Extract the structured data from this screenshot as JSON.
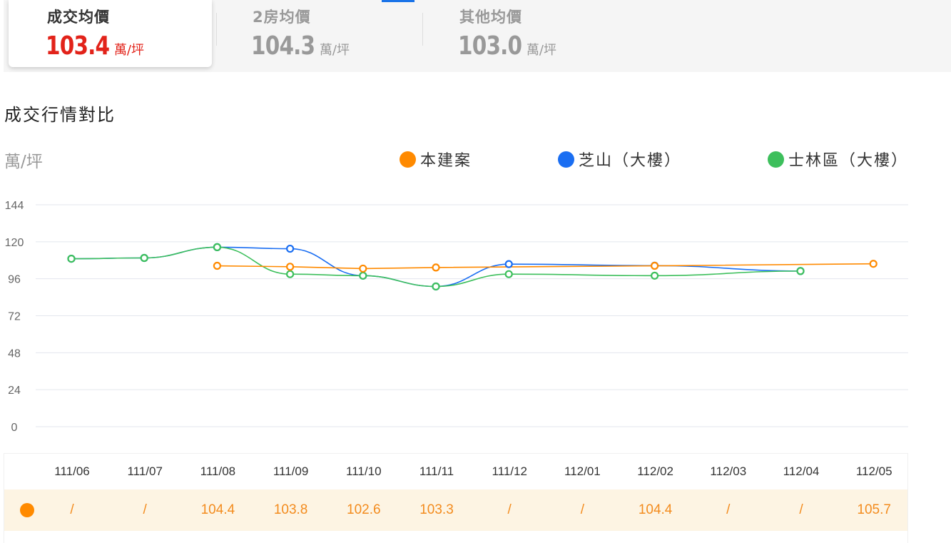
{
  "tabs": [
    {
      "title": "成交均價",
      "value": "103.4",
      "unit": "萬/坪",
      "active": true
    },
    {
      "title": "2房均價",
      "value": "104.3",
      "unit": "萬/坪",
      "active": false
    },
    {
      "title": "其他均價",
      "value": "103.0",
      "unit": "萬/坪",
      "active": false
    }
  ],
  "section_title": "成交行情對比",
  "colors": {
    "accent_red": "#e2231a",
    "series_project": "#ff8a00",
    "series_zhishan": "#1a6ef2",
    "series_shilin": "#3dbf5c",
    "table_highlight": "#fdf4e3"
  },
  "chart_data": {
    "type": "line",
    "ylabel": "萬/坪",
    "ylim": [
      0,
      144
    ],
    "yticks": [
      144,
      120,
      96,
      72,
      48,
      24,
      0
    ],
    "categories": [
      "111/06",
      "111/07",
      "111/08",
      "111/09",
      "111/10",
      "111/11",
      "111/12",
      "112/01",
      "112/02",
      "112/03",
      "112/04",
      "112/05"
    ],
    "grid": true,
    "legend_placement": "top-right",
    "series": [
      {
        "name": "本建案",
        "color": "#ff8a00",
        "smooth": false,
        "values": [
          null,
          null,
          104.4,
          103.8,
          102.6,
          103.3,
          null,
          null,
          104.4,
          null,
          null,
          105.7
        ]
      },
      {
        "name": "芝山（大樓）",
        "color": "#1a6ef2",
        "smooth": true,
        "values": [
          109,
          109.5,
          116.5,
          115.5,
          98,
          91,
          105.5,
          null,
          104.5,
          null,
          101,
          null
        ]
      },
      {
        "name": "士林區（大樓）",
        "color": "#3dbf5c",
        "smooth": true,
        "values": [
          109,
          109.5,
          116.5,
          99,
          98,
          91,
          99,
          null,
          98,
          null,
          101,
          null
        ]
      }
    ]
  },
  "table": {
    "headers": [
      "111/06",
      "111/07",
      "111/08",
      "111/09",
      "111/10",
      "111/11",
      "111/12",
      "112/01",
      "112/02",
      "112/03",
      "112/04",
      "112/05"
    ],
    "row": [
      "/",
      "/",
      "104.4",
      "103.8",
      "102.6",
      "103.3",
      "/",
      "/",
      "104.4",
      "/",
      "/",
      "105.7"
    ]
  }
}
